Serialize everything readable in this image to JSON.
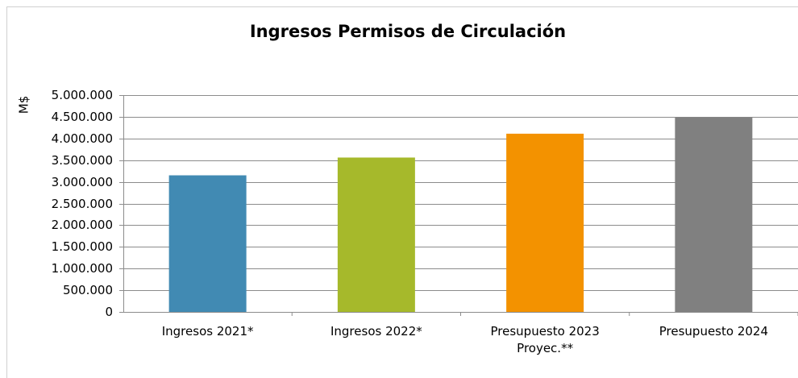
{
  "chart_data": {
    "type": "bar",
    "title": "Ingresos Permisos de Circulación",
    "y_label": "M$",
    "categories": [
      "Ingresos 2021*",
      "Ingresos 2022*",
      "Presupuesto 2023 Proyec.**",
      "Presupuesto 2024"
    ],
    "values": [
      3150000,
      3560000,
      4110000,
      4490000
    ],
    "colors": [
      "#418ab3",
      "#a6b92b",
      "#f39200",
      "#808080"
    ],
    "ylim": [
      0,
      5000000
    ],
    "yticks": [
      0,
      {
        "value": 500000,
        "label": "500.000"
      },
      {
        "value": 1000000,
        "label": "1.000.000"
      },
      {
        "value": 1500000,
        "label": "1.500.000"
      },
      {
        "value": 2000000,
        "label": "2.000.000"
      },
      {
        "value": 2500000,
        "label": "2.500.000"
      },
      {
        "value": 3000000,
        "label": "3.000.000"
      },
      {
        "value": 3500000,
        "label": "3.500.000"
      },
      {
        "value": 4000000,
        "label": "4.000.000"
      },
      {
        "value": 4500000,
        "label": "4.500.000"
      },
      {
        "value": 5000000,
        "label": "5.000.000"
      }
    ],
    "grid": true
  }
}
